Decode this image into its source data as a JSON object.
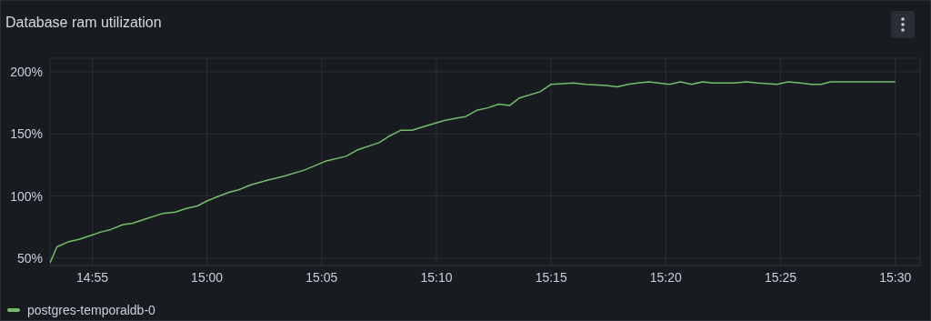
{
  "chart_data": {
    "type": "line",
    "title": "Database ram utilization",
    "x": [
      14.886,
      14.891,
      14.899,
      14.907,
      14.915,
      14.923,
      14.93,
      14.939,
      14.946,
      14.954,
      14.968,
      14.977,
      14.985,
      14.993,
      15.0,
      15.009,
      15.016,
      15.023,
      15.032,
      15.045,
      15.056,
      15.071,
      15.086,
      15.101,
      15.109,
      15.125,
      15.132,
      15.141,
      15.149,
      15.158,
      15.173,
      15.188,
      15.196,
      15.204,
      15.212,
      15.22,
      15.227,
      15.242,
      15.25,
      15.266,
      15.275,
      15.29,
      15.298,
      15.306,
      15.313,
      15.321,
      15.336,
      15.344,
      15.352,
      15.36,
      15.367,
      15.383,
      15.392,
      15.4,
      15.414,
      15.422,
      15.431,
      15.439,
      15.446,
      15.453,
      15.5
    ],
    "series": [
      {
        "name": "postgres-temporaldb-0",
        "color": "#73bf69",
        "values": [
          46,
          59,
          63,
          65,
          68,
          71,
          73,
          77,
          78,
          81,
          86,
          87,
          90,
          92,
          96,
          100,
          103,
          105,
          109,
          113,
          116,
          121,
          128,
          132,
          137,
          143,
          148,
          153,
          153,
          156,
          161,
          164,
          169,
          171,
          174,
          173,
          179,
          184,
          190,
          191,
          190,
          189,
          188,
          190,
          191,
          192,
          190,
          192,
          190,
          192,
          191,
          191,
          192,
          191,
          190,
          192,
          191,
          190,
          190,
          192,
          192
        ]
      }
    ],
    "xlim": [
      14.886,
      15.518
    ],
    "xticks": [
      {
        "value": 14.9167,
        "label": "14:55"
      },
      {
        "value": 15.0,
        "label": "15:00"
      },
      {
        "value": 15.0833,
        "label": "15:05"
      },
      {
        "value": 15.1667,
        "label": "15:10"
      },
      {
        "value": 15.25,
        "label": "15:15"
      },
      {
        "value": 15.3333,
        "label": "15:20"
      },
      {
        "value": 15.4167,
        "label": "15:25"
      },
      {
        "value": 15.5,
        "label": "15:30"
      }
    ],
    "ylim": [
      44,
      211
    ],
    "yticks": [
      {
        "value": 50,
        "label": "50%"
      },
      {
        "value": 100,
        "label": "100%"
      },
      {
        "value": 150,
        "label": "150%"
      },
      {
        "value": 200,
        "label": "200%"
      }
    ],
    "grid": true,
    "legend": "bottom left",
    "marker": "none",
    "line_style": "solid"
  }
}
